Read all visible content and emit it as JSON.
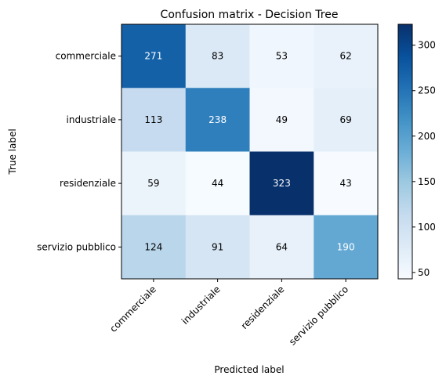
{
  "chart_data": {
    "type": "heatmap",
    "title": "Confusion matrix - Decision Tree",
    "xlabel": "Predicted label",
    "ylabel": "True label",
    "x_categories": [
      "commerciale",
      "industriale",
      "residenziale",
      "servizio pubblico"
    ],
    "y_categories": [
      "commerciale",
      "industriale",
      "residenziale",
      "servizio pubblico"
    ],
    "values": [
      [
        271,
        83,
        53,
        62
      ],
      [
        113,
        238,
        49,
        69
      ],
      [
        59,
        44,
        323,
        43
      ],
      [
        124,
        91,
        64,
        190
      ]
    ],
    "colormap": "Blues",
    "vmin": 43,
    "vmax": 323,
    "colorbar_ticks": [
      50,
      100,
      150,
      200,
      250,
      300
    ],
    "colors": {
      "cmap_low": "#f7fbff",
      "cmap_high": "#08306b"
    }
  }
}
